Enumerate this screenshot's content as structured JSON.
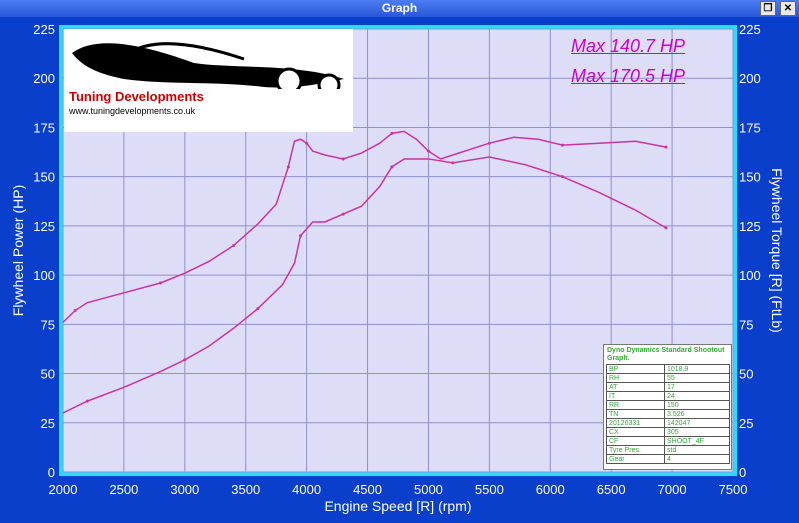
{
  "window": {
    "title": "Graph"
  },
  "logo": {
    "name": "Tuning Developments",
    "url": "www.tuningdevelopments.co.uk"
  },
  "max_labels": [
    "Max 140.7 HP",
    "Max 170.5 HP"
  ],
  "legend": {
    "title": "Dyno Dynamics Standard Shootout Graph.",
    "rows": [
      [
        "BP",
        "1018.9"
      ],
      [
        "RH",
        "55"
      ],
      [
        "AT",
        "17"
      ],
      [
        "IT",
        "24"
      ],
      [
        "RR",
        "150"
      ],
      [
        "TN",
        "3.526"
      ],
      [
        "20120331",
        "142047"
      ],
      [
        "CX",
        "305"
      ],
      [
        "CF",
        "SHOOT_4F"
      ],
      [
        "Tyre Pres.",
        "std"
      ],
      [
        "Gear",
        "4"
      ]
    ]
  },
  "colors": {
    "plot_bg": "#ddddf7",
    "grid": "#8f8fd1",
    "frame": "#22e0ff",
    "line": "#cc33a0",
    "outer": "#0a3fcb"
  },
  "chart_data": {
    "type": "line",
    "xlabel": "Engine Speed [R] (rpm)",
    "ylabel": "Flywheel Power (HP)",
    "y2label": "Flywheel Torque [R] (FtLb)",
    "xlim": [
      2000,
      7500
    ],
    "ylim": [
      0,
      225
    ],
    "y2lim": [
      0,
      225
    ],
    "xticks": [
      2000,
      2500,
      3000,
      3500,
      4000,
      4500,
      5000,
      5500,
      6000,
      6500,
      7000,
      7500
    ],
    "yticks": [
      0,
      25,
      50,
      75,
      100,
      125,
      150,
      175,
      200,
      225
    ],
    "grid": true,
    "series": [
      {
        "x": [
          2000,
          2200,
          2500,
          2800,
          3000,
          3200,
          3400,
          3600,
          3800,
          3900,
          3950,
          4050,
          4150,
          4300,
          4450,
          4600,
          4700,
          4800,
          5000,
          5200,
          5500,
          5800,
          6100,
          6400,
          6700,
          6950
        ],
        "values": [
          30,
          36,
          43,
          51,
          57,
          64,
          73,
          83,
          95,
          106,
          120,
          127,
          127,
          131,
          135,
          145,
          155,
          159,
          159,
          157,
          160,
          156,
          150,
          142,
          133,
          124
        ]
      },
      {
        "x": [
          2000,
          2100,
          2200,
          2500,
          2800,
          3000,
          3200,
          3400,
          3600,
          3750,
          3850,
          3900,
          3950,
          4000,
          4050,
          4150,
          4300,
          4450,
          4600,
          4700,
          4800,
          4900,
          5000,
          5100,
          5200,
          5500,
          5700,
          5900,
          6100,
          6400,
          6700,
          6950
        ],
        "values": [
          76,
          82,
          86,
          91,
          96,
          101,
          107,
          115,
          126,
          136,
          155,
          168,
          169,
          167,
          163,
          161,
          159,
          162,
          167,
          172,
          173,
          169,
          163,
          159,
          161,
          167,
          170,
          169,
          166,
          167,
          168,
          165
        ]
      }
    ]
  }
}
